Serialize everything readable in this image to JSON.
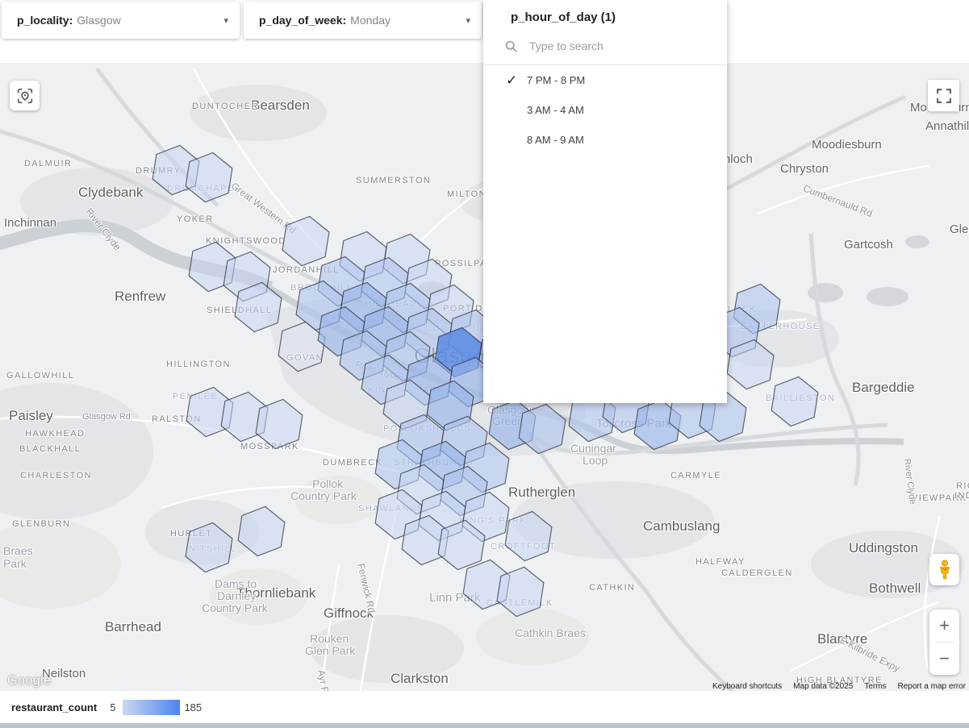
{
  "filters": [
    {
      "label": "p_locality:",
      "value": "Glasgow"
    },
    {
      "label": "p_day_of_week:",
      "value": "Monday"
    }
  ],
  "panel": {
    "title": "p_hour_of_day (1)",
    "search_placeholder": "Type to search",
    "options": [
      {
        "label": "7 PM - 8 PM",
        "selected": true
      },
      {
        "label": "3 AM - 4 AM",
        "selected": false
      },
      {
        "label": "8 AM - 9 AM",
        "selected": false
      }
    ],
    "check_glyph": "✓"
  },
  "legend": {
    "label": "restaurant_count",
    "min": "5",
    "max": "185",
    "gradient_from": "#ccd8f1",
    "gradient_to": "#4b83ee"
  },
  "controls": {
    "zoom_in": "+",
    "zoom_out": "−",
    "google_logo": "Google"
  },
  "attribution": [
    "Keyboard shortcuts",
    "Map data ©2025",
    "Terms",
    "Report a map error"
  ],
  "map": {
    "hex_style": {
      "stroke": "#2f3440",
      "levels": [
        "rgba(214,224,244,0.42)",
        "rgba(196,211,241,0.5)",
        "rgba(174,195,238,0.58)",
        "rgba(150,179,234,0.62)",
        "rgba(125,162,230,0.7)",
        "rgba(94,140,226,0.88)"
      ]
    },
    "hexbins": [
      [
        218,
        211,
        2
      ],
      [
        259,
        220,
        2
      ],
      [
        379,
        299,
        2
      ],
      [
        450,
        318,
        2
      ],
      [
        504,
        321,
        2
      ],
      [
        263,
        331,
        2
      ],
      [
        306,
        343,
        2
      ],
      [
        423,
        349,
        3
      ],
      [
        477,
        350,
        3
      ],
      [
        531,
        352,
        2
      ],
      [
        320,
        381,
        2
      ],
      [
        396,
        379,
        3
      ],
      [
        450,
        381,
        4
      ],
      [
        504,
        382,
        3
      ],
      [
        558,
        384,
        2
      ],
      [
        374,
        430,
        1
      ],
      [
        423,
        411,
        4
      ],
      [
        477,
        411,
        4
      ],
      [
        531,
        413,
        3
      ],
      [
        585,
        415,
        3
      ],
      [
        450,
        441,
        3
      ],
      [
        504,
        442,
        3
      ],
      [
        568,
        437,
        6
      ],
      [
        622,
        441,
        4
      ],
      [
        477,
        471,
        3
      ],
      [
        531,
        472,
        4
      ],
      [
        585,
        474,
        4
      ],
      [
        504,
        502,
        2
      ],
      [
        558,
        503,
        4
      ],
      [
        260,
        511,
        2
      ],
      [
        303,
        517,
        2
      ],
      [
        346,
        526,
        2
      ],
      [
        521,
        545,
        3
      ],
      [
        575,
        547,
        3
      ],
      [
        494,
        576,
        3
      ],
      [
        548,
        578,
        4
      ],
      [
        602,
        580,
        3
      ],
      [
        521,
        607,
        2
      ],
      [
        575,
        609,
        3
      ],
      [
        494,
        638,
        2
      ],
      [
        548,
        640,
        2
      ],
      [
        602,
        641,
        2
      ],
      [
        527,
        670,
        2
      ],
      [
        572,
        676,
        2
      ],
      [
        259,
        679,
        2
      ],
      [
        324,
        659,
        2
      ],
      [
        655,
        665,
        2
      ],
      [
        603,
        725,
        2
      ],
      [
        645,
        734,
        2
      ],
      [
        635,
        527,
        4
      ],
      [
        672,
        532,
        3
      ],
      [
        734,
        517,
        3
      ],
      [
        776,
        506,
        3
      ],
      [
        815,
        527,
        4
      ],
      [
        858,
        513,
        3
      ],
      [
        896,
        517,
        3
      ],
      [
        938,
        383,
        3
      ],
      [
        912,
        412,
        3
      ],
      [
        930,
        452,
        2
      ],
      [
        985,
        498,
        2
      ]
    ],
    "labels": [
      [
        "Bearsden",
        311,
        121,
        "city-lg"
      ],
      [
        "Clydebank",
        97,
        229,
        "city-lg"
      ],
      [
        "Inchinnan",
        5,
        268,
        "city"
      ],
      [
        "Renfrew",
        142,
        358,
        "city-lg"
      ],
      [
        "Paisley",
        11,
        506,
        "city-lg"
      ],
      [
        "Moodiesburn",
        1006,
        171,
        "city"
      ],
      [
        "Chryston",
        967,
        201,
        "city"
      ],
      [
        "nloch",
        897,
        189,
        "city"
      ],
      [
        "Gartcosh",
        1046,
        295,
        "city"
      ],
      [
        "Glenboi",
        1177,
        276,
        "city"
      ],
      [
        "Mollinsburn",
        1128,
        125,
        "city"
      ],
      [
        "Annathill",
        1147,
        148,
        "city"
      ],
      [
        "Bargeddie",
        1056,
        471,
        "city-lg"
      ],
      [
        "Uddingston",
        1052,
        670,
        "city-lg"
      ],
      [
        "Bothwell",
        1077,
        720,
        "city-lg"
      ],
      [
        "Blantyre",
        1013,
        783,
        "city-lg"
      ],
      [
        "Cambuslang",
        797,
        643,
        "city-lg"
      ],
      [
        "Rutherglen",
        630,
        601,
        "city-lg"
      ],
      [
        "Thornliebank",
        293,
        726,
        "city-lg"
      ],
      [
        "Giffnock",
        401,
        751,
        "city-lg"
      ],
      [
        "Barrhead",
        130,
        768,
        "city-lg"
      ],
      [
        "Neilston",
        52,
        827,
        "city"
      ],
      [
        "Clarkston",
        484,
        832,
        "city-lg"
      ],
      [
        "Glasgow",
        513,
        426,
        "big"
      ],
      [
        "Braes",
        4,
        675,
        "park"
      ],
      [
        "Park",
        4,
        691,
        "park"
      ],
      [
        "Dams to",
        266,
        716,
        "park"
      ],
      [
        "Darnley",
        269,
        731,
        "park"
      ],
      [
        "Country Park",
        250,
        746,
        "park"
      ],
      [
        "Pollok",
        387,
        592,
        "park"
      ],
      [
        "Country Park",
        360,
        607,
        "park"
      ],
      [
        "Rouken",
        384,
        784,
        "park"
      ],
      [
        "Glen Park",
        378,
        799,
        "park"
      ],
      [
        "Linn Park",
        532,
        733,
        "park-lg"
      ],
      [
        "Cathkin Braes",
        638,
        777,
        "park"
      ],
      [
        "Cuningar",
        707,
        548,
        "park"
      ],
      [
        "Loop",
        722,
        563,
        "park"
      ],
      [
        "Tollcross Park",
        739,
        517,
        "park-lg"
      ],
      [
        "Glasgow",
        604,
        500,
        "park"
      ],
      [
        "Green",
        610,
        514,
        "park"
      ],
      [
        "DUNTOCHER",
        238,
        126,
        "district"
      ],
      [
        "DALMUIR",
        30,
        197,
        "district"
      ],
      [
        "DRUMRY",
        168,
        206,
        "district"
      ],
      [
        "DRUMCHAPEL",
        207,
        228,
        "district-f"
      ],
      [
        "YOKER",
        219,
        266,
        "district"
      ],
      [
        "KNIGHTSWOOD",
        255,
        293,
        "district"
      ],
      [
        "SUMMERSTON",
        441,
        218,
        "district"
      ],
      [
        "MILTON",
        554,
        235,
        "district"
      ],
      [
        "POSSILPARK",
        539,
        321,
        "district"
      ],
      [
        "JORDANHILL",
        338,
        329,
        "district"
      ],
      [
        "BROOMHILL",
        360,
        351,
        "district-f"
      ],
      [
        "HILLHEAD",
        452,
        371,
        "district-f"
      ],
      [
        "PORT DUNDAS",
        549,
        377,
        "district"
      ],
      [
        "COWCADDENS",
        527,
        402,
        "district-f"
      ],
      [
        "PARTICK",
        401,
        388,
        "district-f"
      ],
      [
        "GOVAN",
        355,
        438,
        "district"
      ],
      [
        "KINNING PARK",
        456,
        478,
        "district-f"
      ],
      [
        "HILLINGTON",
        206,
        446,
        "district"
      ],
      [
        "GALLOWHILL",
        8,
        460,
        "district"
      ],
      [
        "PENILEE",
        214,
        486,
        "district-f"
      ],
      [
        "RALSTON",
        188,
        514,
        "district"
      ],
      [
        "HAWKHEAD",
        31,
        532,
        "district"
      ],
      [
        "BLACKHALL",
        24,
        551,
        "district"
      ],
      [
        "MOSSPARK",
        298,
        548,
        "district"
      ],
      [
        "CHARLESTON",
        25,
        584,
        "district"
      ],
      [
        "POLLOKSHIELDS",
        475,
        526,
        "district-f"
      ],
      [
        "DUMBRECK",
        400,
        568,
        "district"
      ],
      [
        "STRATHBUNGO",
        488,
        568,
        "district-f"
      ],
      [
        "GLENBURN",
        15,
        644,
        "district"
      ],
      [
        "HURLET",
        211,
        656,
        "district"
      ],
      [
        "NITSHILL",
        234,
        675,
        "district-f"
      ],
      [
        "SHAWLANDS",
        444,
        625,
        "district-f"
      ],
      [
        "KING'S PARK",
        569,
        640,
        "district-f"
      ],
      [
        "CROFTFOOT",
        608,
        672,
        "district-f"
      ],
      [
        "CASTLEMILK",
        603,
        742,
        "district-f"
      ],
      [
        "CATHKIN",
        730,
        723,
        "district"
      ],
      [
        "HALFWAY",
        862,
        691,
        "district"
      ],
      [
        "CALDERGLEN",
        894,
        705,
        "district"
      ],
      [
        "CARMYLE",
        831,
        584,
        "district"
      ],
      [
        "EASTERHOUSE",
        918,
        399,
        "district-f"
      ],
      [
        "LOCK",
        902,
        378,
        "district-f"
      ],
      [
        "BAILLIESTON",
        949,
        488,
        "district-f"
      ],
      [
        "SHIELDHALL",
        256,
        379,
        "district"
      ],
      [
        "HIGH BLANTYRE",
        987,
        838,
        "district"
      ],
      [
        "VIEWPARK",
        1130,
        612,
        "district"
      ],
      [
        "RIG",
        1185,
        597,
        "district"
      ],
      [
        "INDU",
        1183,
        609,
        "district"
      ],
      [
        "Great Western Rd",
        288,
        222,
        "road",
        37
      ],
      [
        "Cumbernauld Rd",
        996,
        226,
        "road",
        21
      ],
      [
        "River Clyde",
        109,
        253,
        "road",
        52
      ],
      [
        "River Clyde",
        441,
        446,
        "road-sm",
        17
      ],
      [
        "Fenwick Rd",
        447,
        692,
        "road",
        77
      ],
      [
        "Ayr Rd",
        398,
        824,
        "road",
        80
      ],
      [
        "E Kilbride Expy",
        1042,
        786,
        "road",
        27
      ],
      [
        "Glasgow Rd",
        102,
        511,
        "road-sm",
        0
      ],
      [
        "River Clyde",
        1124,
        563,
        "road-sm",
        83
      ]
    ]
  }
}
